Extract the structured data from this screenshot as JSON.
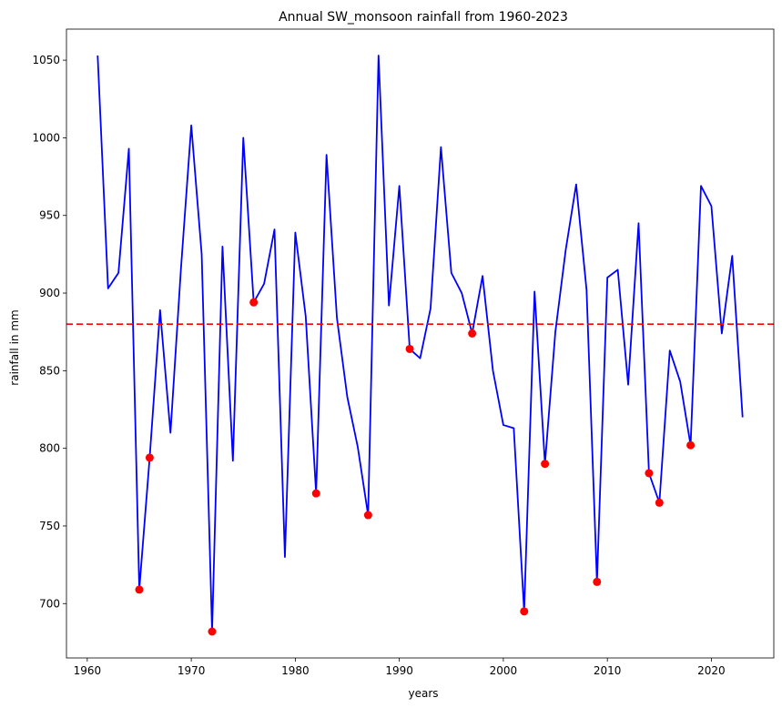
{
  "chart_data": {
    "type": "line",
    "title": "Annual SW_monsoon rainfall from 1960-2023",
    "xlabel": "years",
    "ylabel": "rainfall in mm",
    "xlim": [
      1958,
      2026
    ],
    "ylim": [
      665,
      1070
    ],
    "x_ticks": [
      1960,
      1970,
      1980,
      1990,
      2000,
      2010,
      2020
    ],
    "y_ticks": [
      700,
      750,
      800,
      850,
      900,
      950,
      1000,
      1050
    ],
    "grid": false,
    "series": [
      {
        "kind": "line",
        "color": "#0000ff",
        "x": [
          1961,
          1962,
          1963,
          1964,
          1965,
          1966,
          1967,
          1968,
          1969,
          1970,
          1971,
          1972,
          1973,
          1974,
          1975,
          1976,
          1977,
          1978,
          1979,
          1980,
          1981,
          1982,
          1983,
          1984,
          1985,
          1986,
          1987,
          1988,
          1989,
          1990,
          1991,
          1992,
          1993,
          1994,
          1995,
          1996,
          1997,
          1998,
          1999,
          2000,
          2001,
          2002,
          2003,
          2004,
          2005,
          2006,
          2007,
          2008,
          2009,
          2010,
          2011,
          2012,
          2013,
          2014,
          2015,
          2016,
          2017,
          2018,
          2019,
          2020,
          2021,
          2022,
          2023
        ],
        "y": [
          1053,
          903,
          913,
          993,
          709,
          794,
          889,
          810,
          915,
          1008,
          925,
          682,
          930,
          792,
          1000,
          894,
          906,
          941,
          730,
          939,
          885,
          771,
          989,
          884,
          833,
          801,
          757,
          1053,
          892,
          969,
          864,
          858,
          890,
          994,
          913,
          900,
          874,
          911,
          850,
          815,
          813,
          695,
          901,
          790,
          875,
          928,
          970,
          902,
          714,
          910,
          915,
          841,
          945,
          784,
          765,
          863,
          843,
          802,
          969,
          956,
          874,
          924,
          820
        ]
      },
      {
        "kind": "scatter",
        "color": "#ff0000",
        "x": [
          1965,
          1966,
          1972,
          1976,
          1982,
          1987,
          1991,
          1997,
          2002,
          2004,
          2009,
          2014,
          2015,
          2018
        ],
        "y": [
          709,
          794,
          682,
          894,
          771,
          757,
          864,
          874,
          695,
          790,
          714,
          784,
          765,
          802
        ]
      }
    ],
    "reference_line": {
      "y": 880,
      "color": "#ff0000",
      "style": "dashed"
    }
  }
}
